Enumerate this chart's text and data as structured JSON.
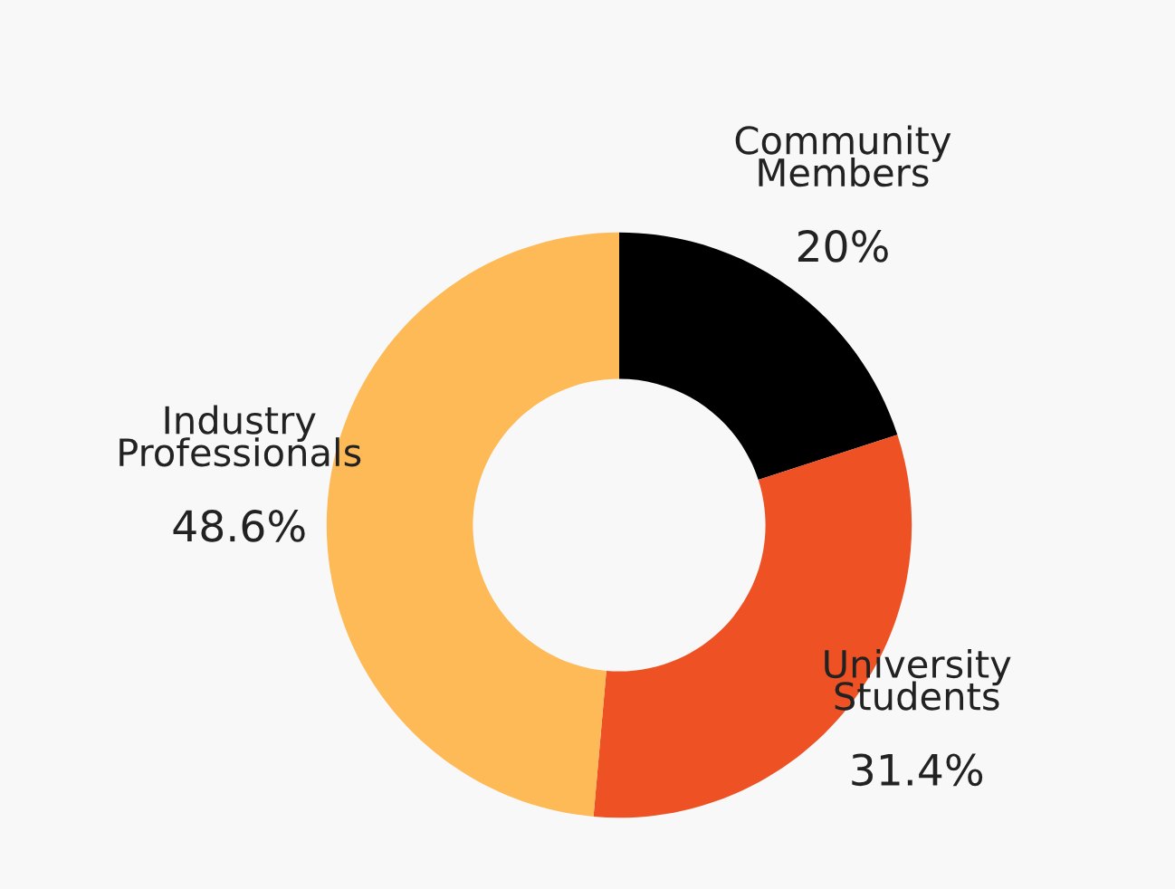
{
  "chart_data": {
    "type": "donut",
    "categories": [
      "Community\nMembers",
      "University\nStudents",
      "Industry\nProfessionals"
    ],
    "values": [
      20,
      31.4,
      48.6
    ],
    "value_labels": [
      "20%",
      "31.4%",
      "48.6%"
    ],
    "colors": [
      "#000000",
      "#ee5124",
      "#fdba56"
    ],
    "legend": false
  }
}
